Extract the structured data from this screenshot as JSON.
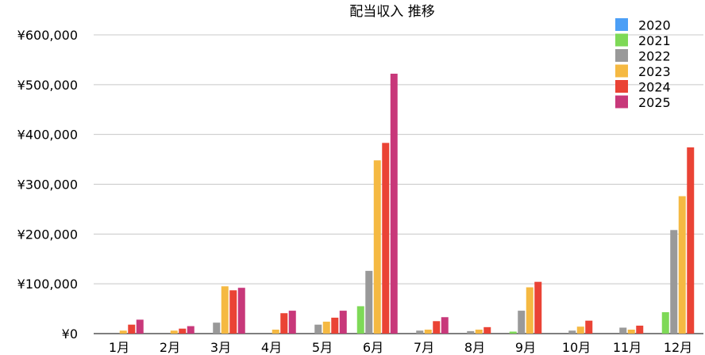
{
  "chart_data": {
    "type": "bar",
    "title": "配当収入 推移",
    "xlabel": "",
    "ylabel": "",
    "categories": [
      "1月",
      "2月",
      "3月",
      "4月",
      "5月",
      "6月",
      "7月",
      "8月",
      "9月",
      "10月",
      "11月",
      "12月"
    ],
    "y_ticks": [
      "¥0",
      "¥100,000",
      "¥200,000",
      "¥300,000",
      "¥400,000",
      "¥500,000",
      "¥600,000"
    ],
    "ylim": [
      0,
      600000
    ],
    "grid": true,
    "legend_position": "top-right",
    "series": [
      {
        "name": "2020",
        "color": "#4c9ff6",
        "values": [
          0,
          0,
          0,
          0,
          0,
          0,
          0,
          0,
          0,
          0,
          0,
          0
        ]
      },
      {
        "name": "2021",
        "color": "#7ed957",
        "values": [
          0,
          0,
          0,
          0,
          0,
          55000,
          0,
          0,
          4000,
          0,
          0,
          43000
        ]
      },
      {
        "name": "2022",
        "color": "#999999",
        "values": [
          0,
          0,
          22000,
          0,
          18000,
          126000,
          6000,
          5000,
          46000,
          6000,
          12000,
          208000
        ]
      },
      {
        "name": "2023",
        "color": "#f5b942",
        "values": [
          6000,
          6000,
          95000,
          8000,
          24000,
          348000,
          8000,
          8000,
          93000,
          14000,
          8000,
          276000
        ]
      },
      {
        "name": "2024",
        "color": "#ea4335",
        "values": [
          18000,
          10000,
          87000,
          41000,
          32000,
          383000,
          25000,
          13000,
          104000,
          26000,
          16000,
          374000
        ]
      },
      {
        "name": "2025",
        "color": "#c8387a",
        "values": [
          28000,
          15000,
          92000,
          46000,
          46000,
          522000,
          33000,
          0,
          0,
          0,
          0,
          0
        ]
      }
    ]
  }
}
